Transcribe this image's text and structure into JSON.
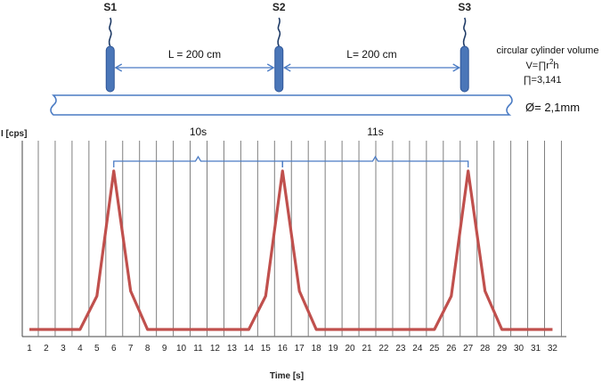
{
  "sensors": [
    {
      "label": "S1",
      "x_s": 6
    },
    {
      "label": "S2",
      "x_s": 16
    },
    {
      "label": "S3",
      "x_s": 27
    }
  ],
  "distances": [
    {
      "label": "L = 200 cm",
      "from": "S1",
      "to": "S2"
    },
    {
      "label": "L= 200 cm",
      "from": "S2",
      "to": "S3"
    }
  ],
  "volume_note": {
    "title": "circular cylinder volume",
    "formula_prefix": "V=∏r",
    "formula_exp": "2",
    "formula_suffix": "h",
    "pi_value": "∏=3,141"
  },
  "diameter_label": "Ø= 2,1mm",
  "intervals": [
    {
      "label": "10s",
      "from": 6,
      "to": 16
    },
    {
      "label": "11s",
      "from": 16,
      "to": 27
    }
  ],
  "colors": {
    "sensor_fill": "#4a76b8",
    "sensor_stroke": "#2e5597",
    "arrow": "#4a7bc4",
    "signal": "#c0504d",
    "grid": "#7f7f7f",
    "bracket": "#4a7bc4"
  },
  "chart_data": {
    "type": "line",
    "xlabel": "Time [s]",
    "ylabel": "I [cps]",
    "x_ticks": [
      "1",
      "2",
      "3",
      "4",
      "5",
      "6",
      "7",
      "8",
      "9",
      "10",
      "11",
      "12",
      "13",
      "14",
      "15",
      "16",
      "17",
      "18",
      "19",
      "20",
      "21",
      "22",
      "23",
      "24",
      "25",
      "26",
      "27",
      "28",
      "29",
      "30",
      "31",
      "32"
    ],
    "xlim": [
      1,
      32
    ],
    "ylim": [
      0,
      1
    ],
    "grid": true,
    "series": [
      {
        "x": [
          1,
          4,
          5,
          6,
          7,
          8,
          14,
          15,
          16,
          17,
          18,
          25,
          26,
          27,
          28,
          29,
          32
        ],
        "y": [
          0,
          0,
          0.2,
          0.95,
          0.23,
          0,
          0,
          0.2,
          0.95,
          0.23,
          0,
          0,
          0.2,
          0.95,
          0.23,
          0,
          0
        ]
      }
    ]
  }
}
